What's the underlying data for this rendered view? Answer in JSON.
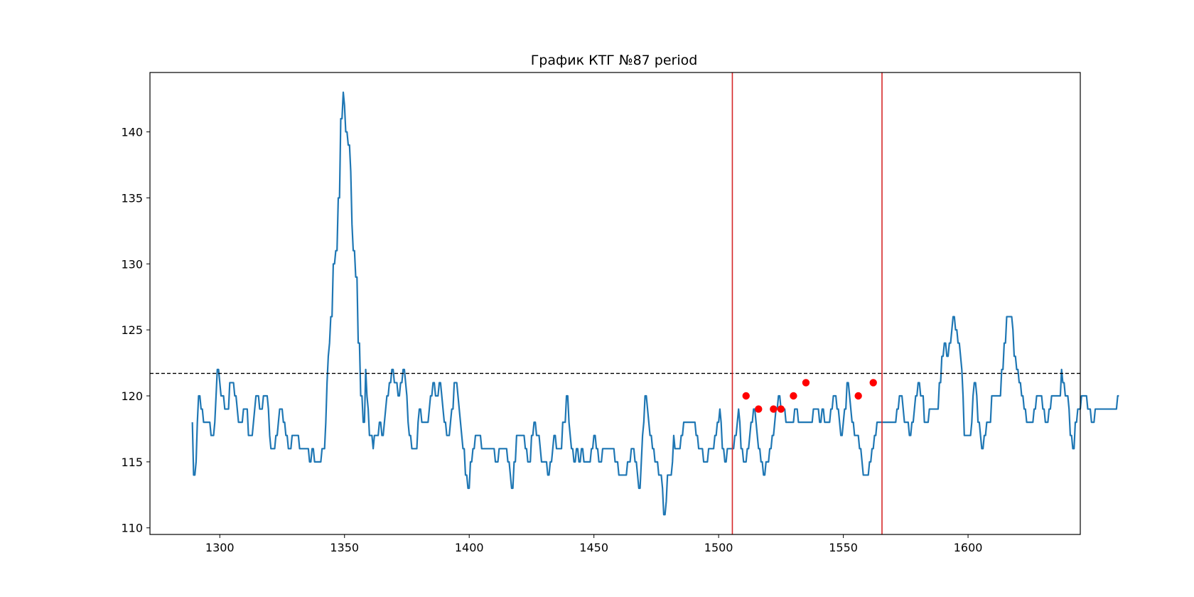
{
  "chart_data": {
    "type": "line",
    "title": "График КТГ №87 period",
    "xlabel": "",
    "ylabel": "",
    "xlim": [
      1272,
      1645
    ],
    "ylim": [
      109.5,
      144.5
    ],
    "x_ticks": [
      1300,
      1350,
      1400,
      1450,
      1500,
      1550,
      1600
    ],
    "y_ticks": [
      110,
      115,
      120,
      125,
      130,
      135,
      140
    ],
    "grid": false,
    "legend": "none",
    "colors": {
      "line": "#1f77b4",
      "markers": "#ff0000",
      "vlines": "#d62728",
      "hline": "#000000"
    },
    "series": [
      {
        "x_start": 1289,
        "x_step": 0.5,
        "values": [
          118,
          114,
          114,
          115,
          118,
          120,
          120,
          119,
          119,
          118,
          118,
          118,
          118,
          118,
          118,
          117,
          117,
          117,
          118,
          120,
          122,
          122,
          121,
          120,
          120,
          120,
          119,
          119,
          119,
          119,
          121,
          121,
          121,
          121,
          120,
          120,
          119,
          118,
          118,
          118,
          118,
          119,
          119,
          119,
          119,
          117,
          117,
          117,
          117,
          118,
          119,
          120,
          120,
          120,
          119,
          119,
          119,
          120,
          120,
          120,
          120,
          119,
          117,
          116,
          116,
          116,
          116,
          117,
          117,
          118,
          119,
          119,
          119,
          118,
          118,
          117,
          117,
          116,
          116,
          116,
          117,
          117,
          117,
          117,
          117,
          117,
          116,
          116,
          116,
          116,
          116,
          116,
          116,
          116,
          115,
          115,
          116,
          116,
          115,
          115,
          115,
          115,
          115,
          115,
          116,
          116,
          116,
          118,
          121,
          123,
          124,
          126,
          126,
          130,
          130,
          131,
          131,
          135,
          135,
          141,
          141,
          143,
          142,
          140,
          140,
          139,
          139,
          137,
          133,
          131,
          131,
          129,
          129,
          124,
          124,
          120,
          120,
          118,
          118,
          122,
          120,
          119,
          117,
          117,
          117,
          116,
          117,
          117,
          117,
          117,
          118,
          118,
          117,
          117,
          118,
          119,
          120,
          120,
          121,
          121,
          122,
          122,
          121,
          121,
          121,
          120,
          120,
          121,
          121,
          122,
          122,
          121,
          120,
          118,
          117,
          117,
          116,
          116,
          116,
          116,
          116,
          118,
          119,
          119,
          118,
          118,
          118,
          118,
          118,
          118,
          119,
          120,
          120,
          121,
          121,
          120,
          120,
          120,
          121,
          121,
          120,
          119,
          118,
          118,
          117,
          117,
          117,
          118,
          119,
          119,
          121,
          121,
          121,
          120,
          119,
          118,
          117,
          116,
          116,
          114,
          114,
          113,
          113,
          115,
          115,
          116,
          116,
          117,
          117,
          117,
          117,
          117,
          116,
          116,
          116,
          116,
          116,
          116,
          116,
          116,
          116,
          116,
          116,
          115,
          115,
          115,
          116,
          116,
          116,
          116,
          116,
          116,
          116,
          115,
          115,
          114,
          113,
          113,
          115,
          115,
          117,
          117,
          117,
          117,
          117,
          117,
          117,
          116,
          116,
          115,
          115,
          115,
          117,
          117,
          118,
          118,
          117,
          117,
          117,
          116,
          115,
          115,
          115,
          115,
          115,
          114,
          114,
          115,
          115,
          116,
          117,
          117,
          116,
          116,
          116,
          116,
          116,
          118,
          118,
          118,
          120,
          120,
          118,
          117,
          116,
          116,
          115,
          115,
          116,
          116,
          115,
          115,
          116,
          116,
          115,
          115,
          115,
          115,
          115,
          115,
          116,
          116,
          117,
          117,
          116,
          116,
          115,
          115,
          115,
          116,
          116,
          116,
          116,
          116,
          116,
          116,
          116,
          116,
          116,
          115,
          115,
          115,
          114,
          114,
          114,
          114,
          114,
          114,
          114,
          115,
          115,
          115,
          116,
          116,
          116,
          115,
          115,
          114,
          113,
          113,
          115,
          117,
          118,
          120,
          120,
          119,
          118,
          117,
          117,
          116,
          116,
          115,
          115,
          115,
          114,
          114,
          114,
          113,
          111,
          111,
          112,
          114,
          114,
          114,
          114,
          115,
          117,
          116,
          116,
          116,
          116,
          116,
          117,
          117,
          118,
          118,
          118,
          118,
          118,
          118,
          118,
          118,
          118,
          118,
          117,
          117,
          116,
          116,
          116,
          116,
          115,
          115,
          115,
          115,
          116,
          116,
          116,
          116,
          116,
          117,
          117,
          118,
          118,
          119,
          118,
          116,
          116,
          115,
          115,
          116,
          116,
          116,
          116,
          116,
          116,
          117,
          117,
          118,
          119,
          118,
          116,
          116,
          115,
          115,
          115,
          116,
          116,
          117,
          118,
          118,
          119,
          119,
          118,
          117,
          116,
          116,
          115,
          115,
          114,
          114,
          115,
          115,
          115,
          116,
          116,
          117,
          117,
          118,
          119,
          119,
          120,
          120,
          119,
          119,
          119,
          119,
          118,
          118,
          118,
          118,
          118,
          118,
          118,
          119,
          119,
          119,
          118,
          118,
          118,
          118,
          118,
          118,
          118,
          118,
          118,
          118,
          118,
          118,
          119,
          119,
          119,
          119,
          119,
          118,
          118,
          119,
          119,
          118,
          118,
          118,
          118,
          118,
          119,
          119,
          120,
          120,
          120,
          119,
          119,
          118,
          117,
          117,
          118,
          119,
          119,
          121,
          121,
          120,
          119,
          118,
          118,
          117,
          117,
          117,
          117,
          116,
          116,
          115,
          114,
          114,
          114,
          114,
          114,
          115,
          115,
          116,
          116,
          117,
          117,
          118,
          118,
          118,
          118,
          118,
          118,
          118,
          118,
          118,
          118,
          118,
          118,
          118,
          118,
          118,
          118,
          119,
          119,
          120,
          120,
          120,
          119,
          118,
          118,
          118,
          118,
          117,
          117,
          118,
          118,
          119,
          120,
          120,
          121,
          121,
          120,
          120,
          120,
          118,
          118,
          118,
          118,
          119,
          119,
          119,
          119,
          119,
          119,
          119,
          119,
          121,
          121,
          123,
          123,
          124,
          124,
          123,
          123,
          124,
          124,
          125,
          126,
          126,
          125,
          125,
          124,
          124,
          123,
          122,
          120,
          117,
          117,
          117,
          117,
          117,
          117,
          118,
          120,
          121,
          121,
          120,
          118,
          118,
          117,
          116,
          116,
          117,
          117,
          118,
          118,
          118,
          118,
          120,
          120,
          120,
          120,
          120,
          120,
          120,
          120,
          122,
          122,
          124,
          124,
          126,
          126,
          126,
          126,
          126,
          125,
          123,
          123,
          122,
          122,
          121,
          121,
          120,
          120,
          119,
          119,
          118,
          118,
          118,
          118,
          118,
          118,
          119,
          119,
          120,
          120,
          120,
          120,
          120,
          119,
          119,
          118,
          118,
          118,
          119,
          119,
          120,
          120,
          120,
          120,
          120,
          120,
          120,
          120,
          122,
          121,
          121,
          120,
          120,
          120,
          119,
          117,
          117,
          116,
          116,
          118,
          118,
          119,
          119,
          119,
          120,
          120,
          120,
          120,
          120,
          119,
          119,
          119,
          118,
          118,
          118,
          119,
          119,
          119,
          119,
          119,
          119,
          119,
          119,
          119,
          119,
          119,
          119,
          119,
          119,
          119,
          119,
          119,
          119,
          120,
          120
        ]
      }
    ],
    "threshold": 121.7,
    "vlines": [
      1505.5,
      1565.5
    ],
    "markers": [
      {
        "x": 1511,
        "y": 120
      },
      {
        "x": 1516,
        "y": 119
      },
      {
        "x": 1522,
        "y": 119
      },
      {
        "x": 1525,
        "y": 119
      },
      {
        "x": 1530,
        "y": 120
      },
      {
        "x": 1535,
        "y": 121
      },
      {
        "x": 1556,
        "y": 120
      },
      {
        "x": 1562,
        "y": 121
      }
    ]
  }
}
